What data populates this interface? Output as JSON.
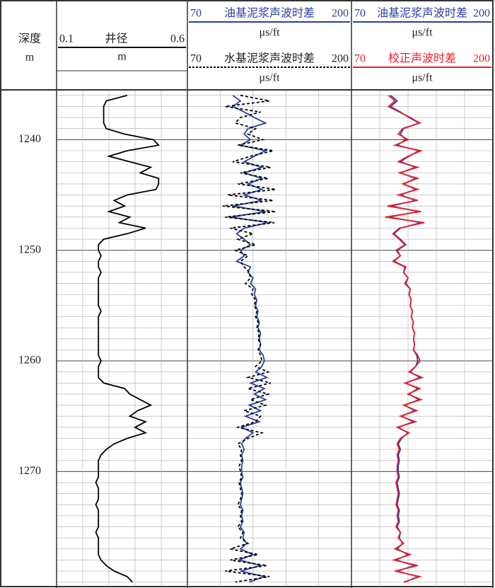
{
  "chart_data": {
    "type": "well-log",
    "depth": {
      "label": "深度",
      "unit": "m",
      "ylim": [
        1235.5,
        1280.4
      ],
      "yticks": [
        1240,
        1250,
        1260,
        1270
      ],
      "minor_yticks": [
        1236,
        1237,
        1238,
        1239,
        1241,
        1242,
        1243,
        1244,
        1245,
        1246,
        1247,
        1248,
        1249,
        1251,
        1252,
        1253,
        1254,
        1255,
        1256,
        1257,
        1258,
        1259,
        1261,
        1262,
        1263,
        1264,
        1265,
        1266,
        1267,
        1268,
        1269,
        1271,
        1272,
        1273,
        1274,
        1275,
        1276,
        1277,
        1278,
        1279,
        1280
      ]
    },
    "depths": [
      1236,
      1236.5,
      1237,
      1237.5,
      1238,
      1238.5,
      1239,
      1239.5,
      1240,
      1240.5,
      1241,
      1241.5,
      1242,
      1242.5,
      1243,
      1243.5,
      1244,
      1244.5,
      1245,
      1245.5,
      1246,
      1246.5,
      1247,
      1247.5,
      1248,
      1248.5,
      1249,
      1249.5,
      1250,
      1250.5,
      1251,
      1251.5,
      1252,
      1252.5,
      1253,
      1253.5,
      1254,
      1254.5,
      1255,
      1255.5,
      1256,
      1256.5,
      1257,
      1257.5,
      1258,
      1258.5,
      1259,
      1259.5,
      1260,
      1260.5,
      1261,
      1261.5,
      1262,
      1262.5,
      1263,
      1263.5,
      1264,
      1264.5,
      1265,
      1265.5,
      1266,
      1266.5,
      1267,
      1267.5,
      1268,
      1268.5,
      1269,
      1269.5,
      1270,
      1270.5,
      1271,
      1271.5,
      1272,
      1272.5,
      1273,
      1273.5,
      1274,
      1274.5,
      1275,
      1275.5,
      1276,
      1276.5,
      1277,
      1277.5,
      1278,
      1278.5,
      1279,
      1279.5,
      1280
    ],
    "tracks": [
      {
        "xlim": [
          0.1,
          0.6
        ],
        "xgrid": [
          0.2,
          0.3,
          0.4,
          0.5
        ],
        "series": [
          {
            "name": "井径",
            "unit": "m",
            "color": "#000000",
            "dash": false,
            "values": [
              0.37,
              0.29,
              0.28,
              0.28,
              0.28,
              0.28,
              0.29,
              0.36,
              0.47,
              0.49,
              0.37,
              0.3,
              0.38,
              0.46,
              0.42,
              0.49,
              0.49,
              0.48,
              0.37,
              0.32,
              0.36,
              0.3,
              0.38,
              0.34,
              0.44,
              0.37,
              0.28,
              0.26,
              0.26,
              0.27,
              0.26,
              0.26,
              0.27,
              0.26,
              0.26,
              0.26,
              0.26,
              0.26,
              0.26,
              0.27,
              0.26,
              0.26,
              0.26,
              0.26,
              0.26,
              0.26,
              0.26,
              0.26,
              0.27,
              0.26,
              0.26,
              0.26,
              0.28,
              0.36,
              0.38,
              0.42,
              0.46,
              0.41,
              0.38,
              0.44,
              0.4,
              0.44,
              0.37,
              0.32,
              0.29,
              0.27,
              0.26,
              0.26,
              0.26,
              0.26,
              0.25,
              0.26,
              0.26,
              0.26,
              0.25,
              0.26,
              0.26,
              0.26,
              0.26,
              0.25,
              0.26,
              0.26,
              0.26,
              0.26,
              0.27,
              0.29,
              0.32,
              0.37,
              0.39
            ]
          }
        ]
      },
      {
        "xlim": [
          70,
          200
        ],
        "xgrid": [
          96,
          122,
          148,
          174
        ],
        "series": [
          {
            "name": "油基泥浆声波时差",
            "unit": "μs/ft",
            "color": "#2b3f9e",
            "dash": false,
            "values": [
              106,
              112,
              106,
              115,
              123,
              132,
              118,
              115,
              120,
              112,
              132,
              123,
              115,
              129,
              115,
              129,
              118,
              129,
              115,
              129,
              106,
              132,
              104,
              134,
              115,
              109,
              115,
              120,
              112,
              115,
              109,
              120,
              118,
              122,
              120,
              124,
              123,
              125,
              124,
              126,
              125,
              127,
              126,
              128,
              127,
              128,
              127,
              130,
              131,
              129,
              124,
              133,
              120,
              131,
              123,
              132,
              119,
              128,
              116,
              127,
              113,
              122,
              116,
              113,
              115,
              113,
              114,
              113,
              113,
              114,
              112,
              113,
              114,
              113,
              112,
              114,
              113,
              114,
              112,
              115,
              114,
              117,
              112,
              122,
              111,
              128,
              112,
              131,
              119
            ]
          },
          {
            "name": "水基泥浆声波时差",
            "unit": "μs/ft",
            "color": "#000000",
            "dash": true,
            "values": [
              112,
              135,
              100,
              128,
              112,
              108,
              124,
              118,
              130,
              110,
              138,
              120,
              106,
              136,
              112,
              134,
              110,
              140,
              102,
              138,
              98,
              140,
              100,
              139,
              104,
              122,
              110,
              124,
              108,
              118,
              112,
              115,
              119,
              120,
              116,
              122,
              121,
              124,
              123,
              125,
              124,
              126,
              125,
              127,
              126,
              128,
              126,
              128,
              129,
              124,
              134,
              118,
              136,
              118,
              134,
              120,
              132,
              115,
              128,
              124,
              110,
              129,
              118,
              110,
              113,
              112,
              113,
              111,
              112,
              113,
              111,
              112,
              113,
              112,
              110,
              113,
              112,
              113,
              110,
              114,
              112,
              118,
              104,
              126,
              104,
              133,
              100,
              135,
              108
            ]
          }
        ]
      },
      {
        "xlim": [
          70,
          200
        ],
        "xgrid": [
          96,
          122,
          148,
          174
        ],
        "series": [
          {
            "name": "油基泥浆声波时差",
            "unit": "μs/ft",
            "color": "#2b3f9e",
            "dash": false,
            "values": [
              106,
              112,
              106,
              115,
              123,
              132,
              118,
              115,
              120,
              112,
              132,
              123,
              115,
              129,
              115,
              129,
              118,
              129,
              115,
              129,
              106,
              132,
              104,
              134,
              115,
              109,
              115,
              120,
              112,
              115,
              109,
              120,
              118,
              122,
              120,
              124,
              123,
              125,
              124,
              126,
              125,
              127,
              126,
              128,
              127,
              128,
              127,
              130,
              131,
              129,
              124,
              133,
              120,
              131,
              123,
              132,
              119,
              128,
              116,
              127,
              113,
              122,
              116,
              113,
              115,
              113,
              114,
              113,
              113,
              114,
              112,
              113,
              114,
              113,
              112,
              114,
              113,
              114,
              112,
              115,
              114,
              117,
              112,
              122,
              111,
              128,
              112,
              131,
              119
            ]
          },
          {
            "name": "校正声波时差",
            "unit": "μs/ft",
            "color": "#e8202a",
            "dash": false,
            "values": [
              104,
              110,
              104,
              114,
              124,
              133,
              117,
              113,
              122,
              110,
              134,
              122,
              113,
              131,
              114,
              131,
              117,
              131,
              113,
              131,
              103,
              134,
              101,
              137,
              114,
              108,
              114,
              119,
              111,
              115,
              108,
              119,
              118,
              122,
              119,
              124,
              123,
              125,
              124,
              126,
              125,
              127,
              126,
              128,
              127,
              128,
              127,
              131,
              133,
              129,
              123,
              135,
              119,
              133,
              122,
              134,
              118,
              130,
              115,
              129,
              112,
              123,
              115,
              112,
              114,
              112,
              113,
              112,
              112,
              113,
              111,
              112,
              113,
              112,
              111,
              113,
              112,
              113,
              111,
              115,
              113,
              118,
              110,
              124,
              109,
              131,
              110,
              133,
              118
            ]
          }
        ]
      }
    ]
  }
}
